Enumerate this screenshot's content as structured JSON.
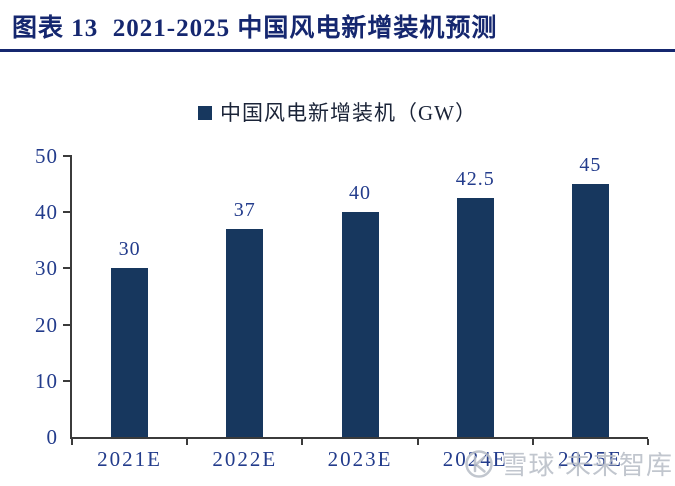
{
  "header": {
    "title": "图表 13  2021-2025 中国风电新增装机预测"
  },
  "chart_data": {
    "type": "bar",
    "title": "图表 13  2021-2025 中国风电新增装机预测",
    "series_name": "中国风电新增装机（GW）",
    "categories": [
      "2021E",
      "2022E",
      "2023E",
      "2024E",
      "2025E"
    ],
    "values": [
      30,
      37,
      40,
      42.5,
      45
    ],
    "value_labels": [
      "30",
      "37",
      "40",
      "42.5",
      "45"
    ],
    "xlabel": "",
    "ylabel": "",
    "ylim": [
      0,
      50
    ],
    "yticks": [
      0,
      10,
      20,
      30,
      40,
      50
    ],
    "grid": false,
    "legend_position": "top-center"
  },
  "colors": {
    "bar": "#17375E",
    "title": "#15276F",
    "rule": "#15276F",
    "axis_line": "#3B3B3B",
    "tick_label": "#233C8C",
    "value_label": "#233C8C",
    "legend_text": "#1B2438",
    "watermark": "#B7BDC6",
    "background": "#FFFFFF"
  },
  "watermark": {
    "logo": "xueqiu-logo",
    "text": "雪球·未来智库"
  }
}
